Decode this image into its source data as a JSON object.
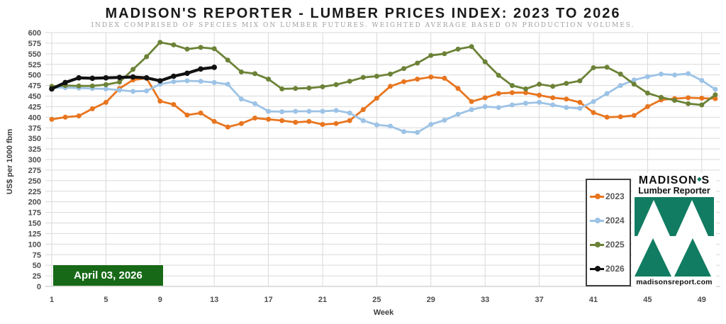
{
  "date_label": "April 03, 2026",
  "brand": {
    "line1_left": "MADISON",
    "line1_right": "S",
    "diamond_glyph": "◆",
    "line2": "Lumber Reporter",
    "website": "madisonsreport.com"
  },
  "colors": {
    "series_2023": "#E8751F",
    "series_2024": "#9DC3E6",
    "series_2025": "#6C8237",
    "series_2026": "#111111",
    "gridline": "#D9D9D9",
    "axis_line": "#BFBFBF",
    "date_box_bg": "#176917",
    "logo_teal": "#117C62",
    "tick_text": "#4d4d4d"
  },
  "chart_data": {
    "type": "line",
    "title": "MADISON'S REPORTER - LUMBER PRICES INDEX: 2023 TO 2026",
    "subtitle": "INDEX COMPRISED OF SPECIES MIX ON LUMBER FUTURES. WEIGHTED AVERAGE BASED ON PRODUCTION VOLUMES.",
    "xlabel": "Week",
    "ylabel": "US$ per 1000 fbm",
    "ylim": [
      0,
      600
    ],
    "ytick_step": 25,
    "xticks": [
      1,
      5,
      9,
      13,
      17,
      21,
      25,
      29,
      33,
      37,
      41,
      45,
      49
    ],
    "grid": true,
    "legend_position": "bottom-right",
    "series": [
      {
        "name": "2023",
        "color": "#E8751F",
        "start_week": 1,
        "values": [
          395,
          400,
          403,
          420,
          435,
          468,
          488,
          492,
          438,
          430,
          405,
          410,
          390,
          377,
          385,
          398,
          395,
          392,
          388,
          390,
          383,
          385,
          392,
          418,
          445,
          473,
          484,
          490,
          495,
          492,
          468,
          437,
          446,
          456,
          458,
          458,
          452,
          446,
          443,
          435,
          411,
          400,
          401,
          404,
          425,
          441,
          444,
          446,
          445,
          444
        ]
      },
      {
        "name": "2024",
        "color": "#9DC3E6",
        "start_week": 1,
        "values": [
          470,
          470,
          469,
          468,
          467,
          464,
          461,
          462,
          478,
          484,
          486,
          485,
          482,
          478,
          443,
          432,
          414,
          413,
          414,
          414,
          414,
          416,
          410,
          392,
          382,
          379,
          366,
          364,
          383,
          393,
          407,
          418,
          425,
          423,
          429,
          433,
          435,
          429,
          423,
          421,
          437,
          456,
          475,
          488,
          496,
          502,
          500,
          503,
          487,
          466
        ]
      },
      {
        "name": "2025",
        "color": "#6C8237",
        "start_week": 1,
        "values": [
          473,
          475,
          474,
          474,
          477,
          483,
          513,
          543,
          577,
          571,
          561,
          565,
          562,
          535,
          507,
          503,
          490,
          467,
          468,
          469,
          472,
          477,
          485,
          494,
          497,
          502,
          515,
          528,
          546,
          550,
          561,
          567,
          531,
          499,
          475,
          467,
          478,
          473,
          480,
          486,
          517,
          518,
          502,
          478,
          457,
          447,
          440,
          432,
          429,
          453
        ]
      },
      {
        "name": "2026",
        "color": "#111111",
        "start_week": 1,
        "values": [
          467,
          482,
          493,
          492,
          493,
          494,
          495,
          493,
          486,
          497,
          504,
          514,
          518
        ]
      }
    ]
  }
}
